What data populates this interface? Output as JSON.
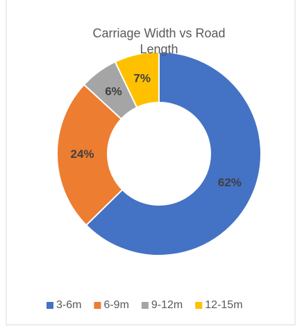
{
  "chart_data": {
    "type": "donut",
    "title": "Carriage Width vs Road Length",
    "categories": [
      "3-6m",
      "6-9m",
      "9-12m",
      "12-15m"
    ],
    "values": [
      62,
      24,
      6,
      7
    ],
    "value_labels": [
      "62%",
      "24%",
      "6%",
      "7%"
    ],
    "colors": [
      "#4472c4",
      "#ed7d31",
      "#a5a5a5",
      "#ffc000"
    ],
    "legend": "bottom"
  }
}
